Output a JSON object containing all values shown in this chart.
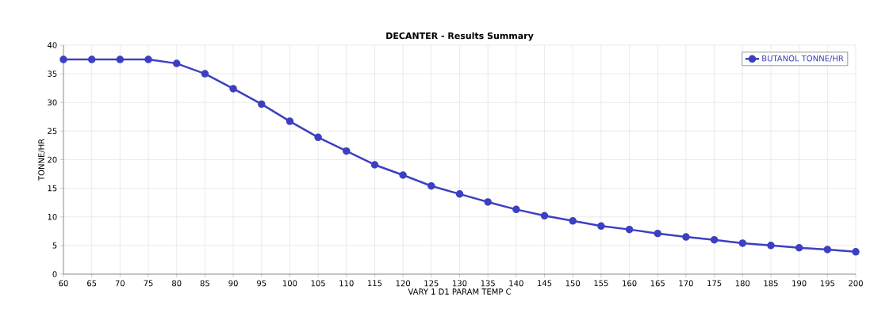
{
  "chart_data": {
    "type": "line",
    "title": "DECANTER - Results Summary",
    "xlabel": "VARY  1 D1     PARAM   TEMP    C",
    "ylabel": "TONNE/HR",
    "x": [
      60,
      65,
      70,
      75,
      80,
      85,
      90,
      95,
      100,
      105,
      110,
      115,
      120,
      125,
      130,
      135,
      140,
      145,
      150,
      155,
      160,
      165,
      170,
      175,
      180,
      185,
      190,
      195,
      200
    ],
    "series": [
      {
        "name": "BUTANOL     TONNE/HR",
        "color": "#3c40c0",
        "values": [
          37.5,
          37.5,
          37.5,
          37.5,
          36.8,
          35.0,
          32.4,
          29.7,
          26.7,
          23.9,
          21.5,
          19.1,
          17.3,
          15.4,
          14.0,
          12.6,
          11.3,
          10.2,
          9.3,
          8.4,
          7.8,
          7.1,
          6.5,
          6.0,
          5.4,
          5.0,
          4.6,
          4.3,
          3.9
        ]
      }
    ],
    "xlim": [
      60,
      200
    ],
    "ylim": [
      0,
      40
    ],
    "xticks": [
      60,
      65,
      70,
      75,
      80,
      85,
      90,
      95,
      100,
      105,
      110,
      115,
      120,
      125,
      130,
      135,
      140,
      145,
      150,
      155,
      160,
      165,
      170,
      175,
      180,
      185,
      190,
      195,
      200
    ],
    "yticks": [
      0,
      5,
      10,
      15,
      20,
      25,
      30,
      35,
      40
    ],
    "grid": true,
    "legend": "top right",
    "marker": "circle",
    "line_style": "solid"
  }
}
